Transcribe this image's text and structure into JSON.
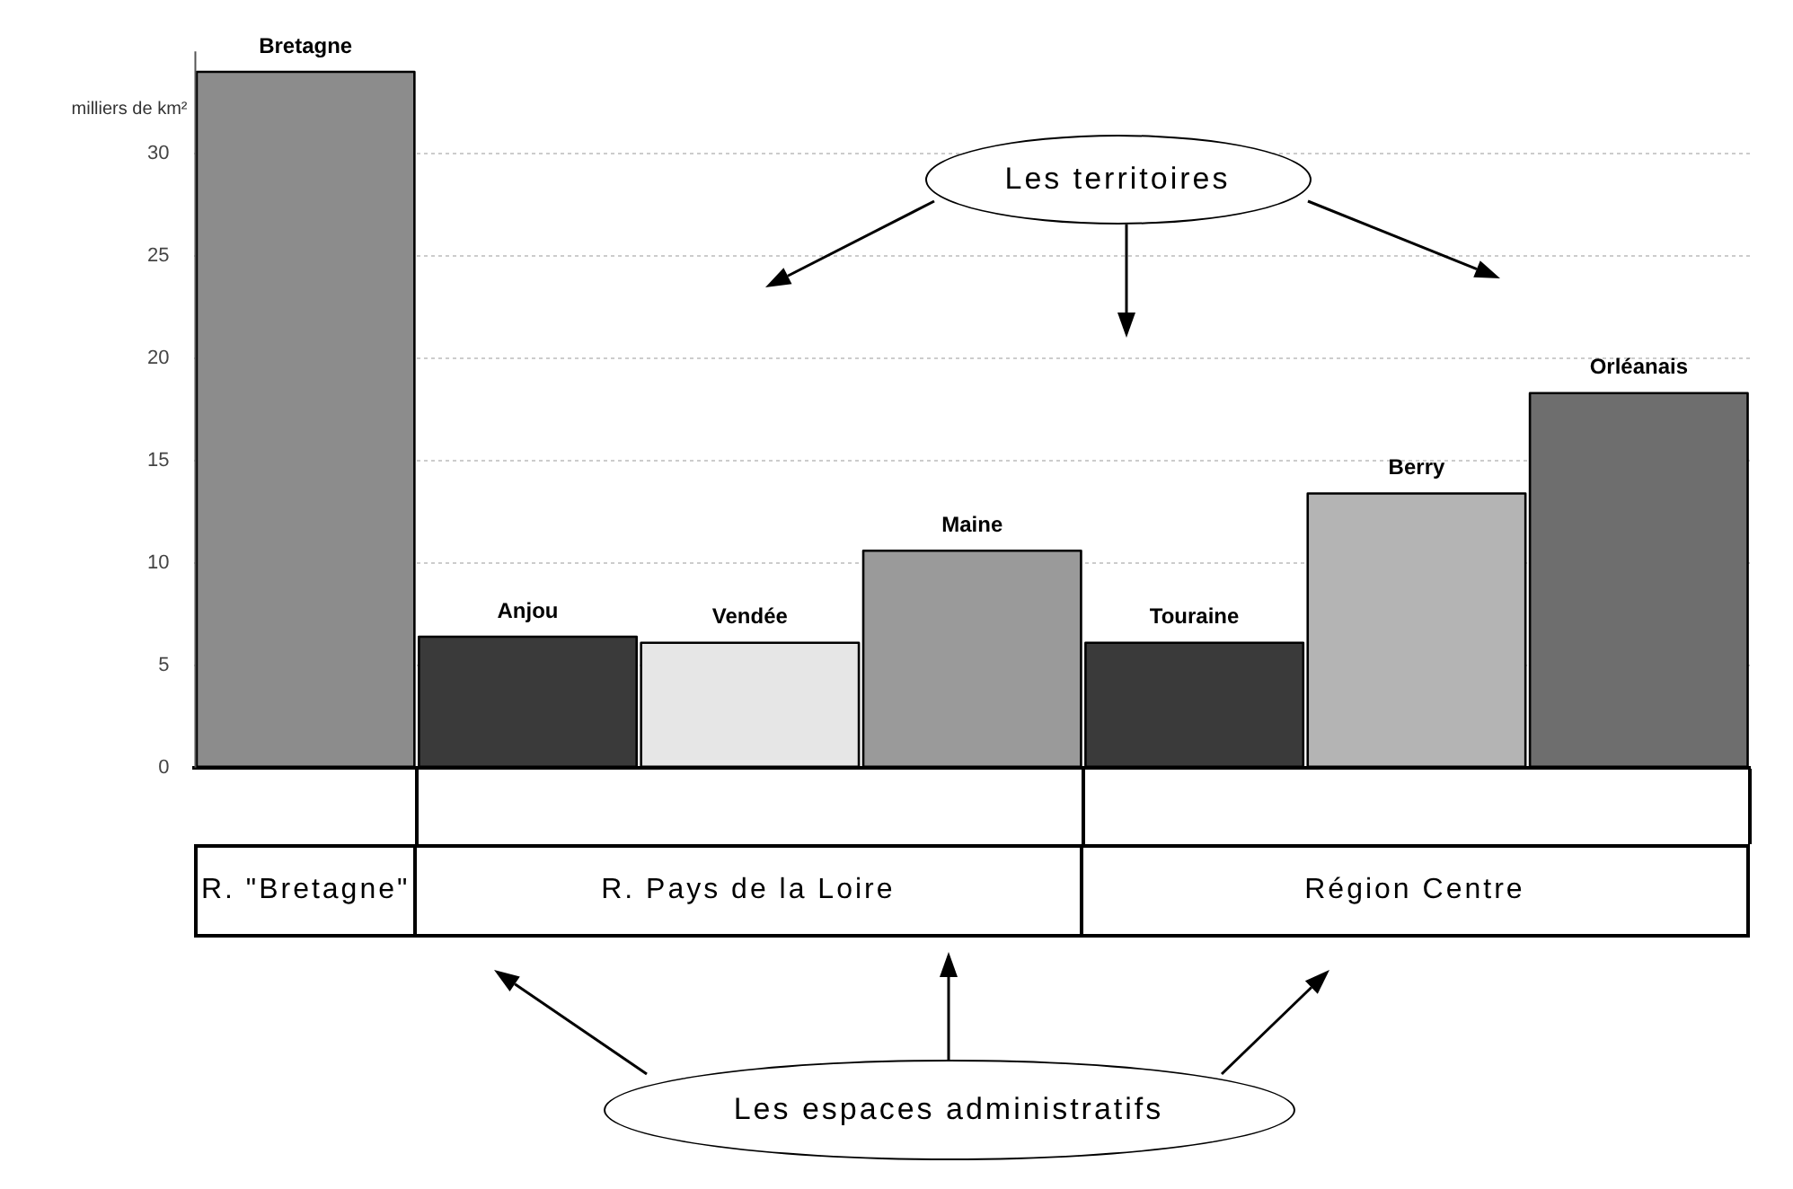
{
  "chart_data": {
    "type": "bar",
    "ylabel": "milliers de km²",
    "categories": [
      "Bretagne",
      "Anjou",
      "Vendée",
      "Maine",
      "Touraine",
      "Berry",
      "Orléanais"
    ],
    "values": [
      34,
      6.4,
      6.1,
      10.6,
      6.1,
      13.4,
      18.3
    ],
    "colors": [
      "#8c8c8c",
      "#3a3a3a",
      "#e6e6e6",
      "#9a9a9a",
      "#3a3a3a",
      "#b4b4b4",
      "#6e6e6e"
    ],
    "ylim": [
      0,
      35
    ],
    "yticks": [
      0,
      5,
      10,
      15,
      20,
      25,
      30
    ],
    "grid": "y",
    "tick_labels": "y",
    "annotations": [
      "Les territoires",
      "Les espaces administratifs",
      "R. \"Bretagne\"",
      "R. Pays de la Loire",
      "Région Centre"
    ]
  }
}
